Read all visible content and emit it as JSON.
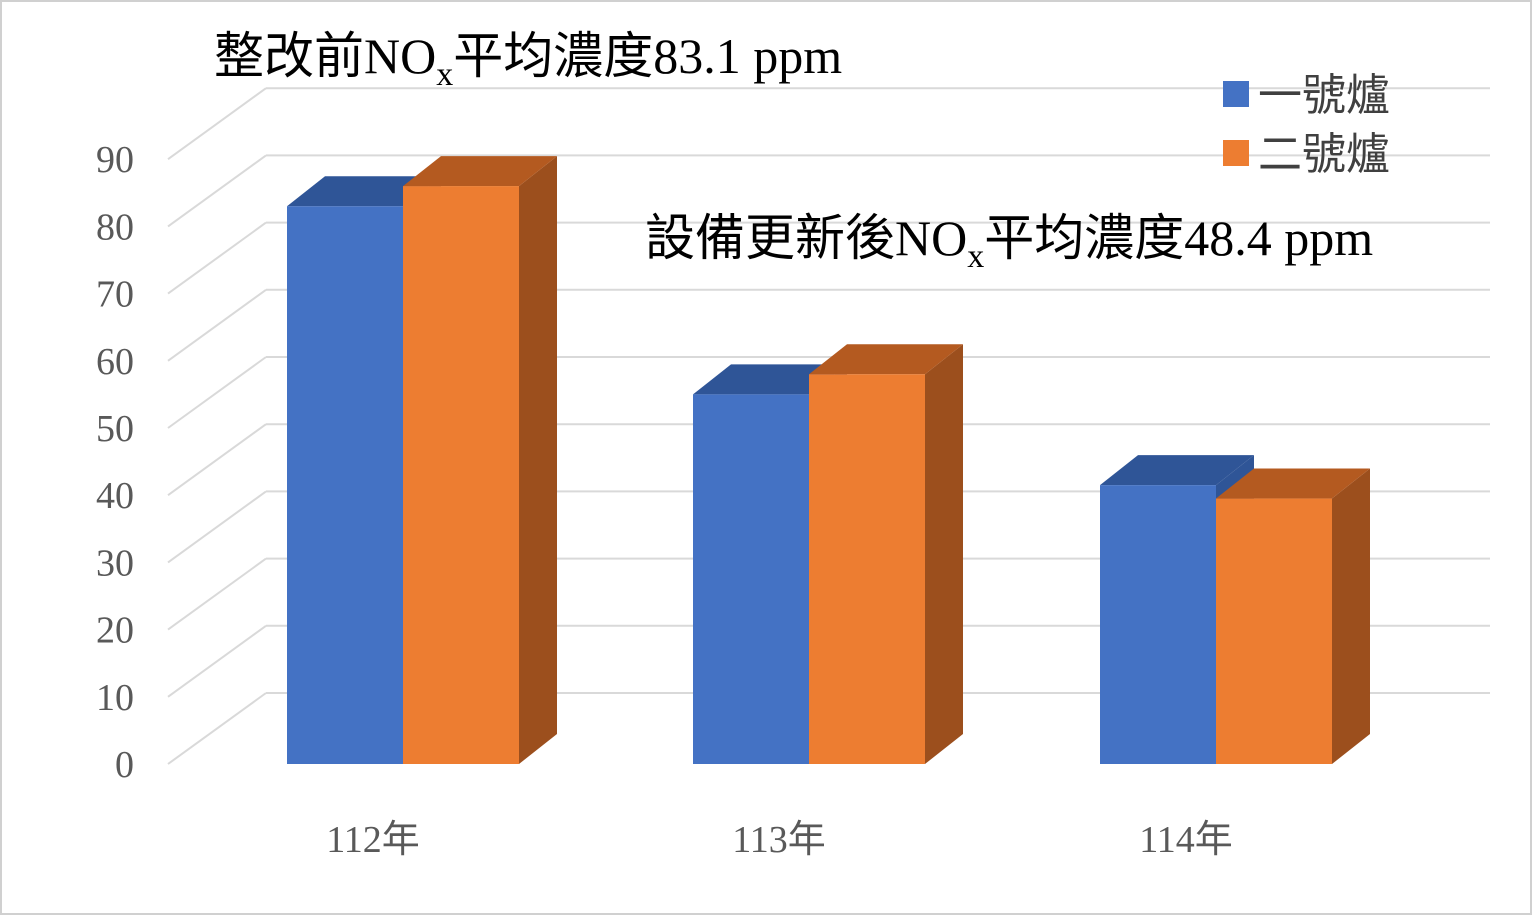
{
  "chart_data": {
    "type": "bar",
    "style": "3d-clustered-column",
    "categories": [
      "112年",
      "113年",
      "114年"
    ],
    "series": [
      {
        "name": "一號爐",
        "values": [
          83,
          55,
          41.5
        ],
        "color": "#4472C4",
        "top_color": "#2F5597"
      },
      {
        "name": "二號爐",
        "values": [
          86,
          58,
          39.5
        ],
        "color": "#ED7D31",
        "side_color": "#9C4F1D",
        "top_color": "#B45A20"
      }
    ],
    "ylim": [
      0,
      90
    ],
    "yticks": [
      0,
      10,
      20,
      30,
      40,
      50,
      60,
      70,
      80,
      90
    ],
    "grid": true,
    "legend_position": "top-right",
    "annotations": [
      {
        "before": "整改前NO",
        "sub": "x",
        "after": "平均濃度83.1 ppm"
      },
      {
        "before": "設備更新後NO",
        "sub": "x",
        "after": "平均濃度48.4 ppm"
      }
    ]
  }
}
